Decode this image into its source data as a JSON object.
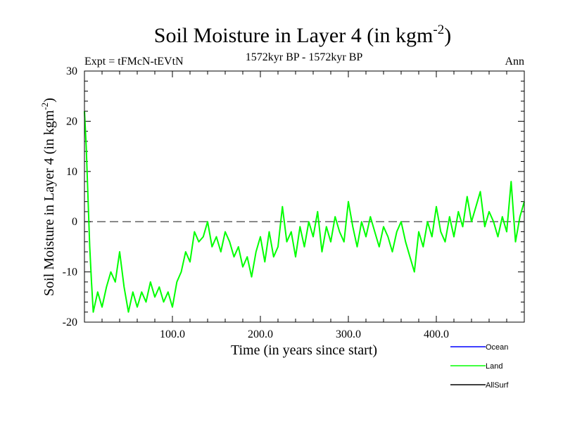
{
  "chart_data": {
    "type": "line",
    "title_main": "Soil Moisture in Layer 4 (in kgm",
    "title_exp": "-2",
    "title_close": ")",
    "subtitle_left": "Expt = tFMcN-tEVtN",
    "subtitle_center": "1572kyr BP - 1572kyr BP",
    "subtitle_right": "Ann",
    "xlabel": "Time (in years since start)",
    "ylabel_main": "Soil Moisture in Layer 4 (in kgm",
    "ylabel_exp": "-2",
    "ylabel_close": ")",
    "xlim": [
      0,
      500
    ],
    "ylim": [
      -20,
      30
    ],
    "x_ticks": [
      {
        "value": 100,
        "label": "100.0"
      },
      {
        "value": 200,
        "label": "200.0"
      },
      {
        "value": 300,
        "label": "300.0"
      },
      {
        "value": 400,
        "label": "400.0"
      }
    ],
    "y_ticks": [
      {
        "value": -20,
        "label": "-20"
      },
      {
        "value": -10,
        "label": "-10"
      },
      {
        "value": 0,
        "label": "0"
      },
      {
        "value": 10,
        "label": "10"
      },
      {
        "value": 20,
        "label": "20"
      },
      {
        "value": 30,
        "label": "30"
      }
    ],
    "reference_line": {
      "y": 0,
      "style": "dashed",
      "color": "#555555"
    },
    "legend": [
      {
        "name": "Ocean",
        "color": "#0000ff"
      },
      {
        "name": "Land",
        "color": "#00ff00"
      },
      {
        "name": "AllSurf",
        "color": "#000000"
      }
    ],
    "series": [
      {
        "name": "Land",
        "color": "#00ff00",
        "x": [
          0,
          2,
          4,
          6,
          8,
          10,
          15,
          20,
          25,
          30,
          35,
          40,
          45,
          50,
          55,
          60,
          65,
          70,
          75,
          80,
          85,
          90,
          95,
          100,
          105,
          110,
          115,
          120,
          125,
          130,
          135,
          140,
          145,
          150,
          155,
          160,
          165,
          170,
          175,
          180,
          185,
          190,
          195,
          200,
          205,
          210,
          215,
          220,
          225,
          230,
          235,
          240,
          245,
          250,
          255,
          260,
          265,
          270,
          275,
          280,
          285,
          290,
          295,
          300,
          305,
          310,
          315,
          320,
          325,
          330,
          335,
          340,
          345,
          350,
          355,
          360,
          365,
          370,
          375,
          380,
          385,
          390,
          395,
          400,
          405,
          410,
          415,
          420,
          425,
          430,
          435,
          440,
          445,
          450,
          455,
          460,
          465,
          470,
          475,
          480,
          485,
          490,
          495,
          500
        ],
        "values": [
          22,
          15,
          5,
          -5,
          -12,
          -18,
          -14,
          -17,
          -13,
          -10,
          -12,
          -6,
          -13,
          -18,
          -14,
          -17,
          -14,
          -16,
          -12,
          -15,
          -13,
          -16,
          -14,
          -17,
          -12,
          -10,
          -6,
          -8,
          -2,
          -4,
          -3,
          0,
          -5,
          -3,
          -6,
          -2,
          -4,
          -7,
          -5,
          -9,
          -7,
          -11,
          -6,
          -3,
          -8,
          -2,
          -7,
          -5,
          3,
          -4,
          -2,
          -7,
          -1,
          -5,
          0,
          -3,
          2,
          -6,
          -1,
          -4,
          1,
          -2,
          -4,
          4,
          -1,
          -5,
          0,
          -3,
          1,
          -2,
          -5,
          -1,
          -3,
          -6,
          -2,
          0,
          -4,
          -7,
          -10,
          -2,
          -5,
          0,
          -3,
          3,
          -2,
          -4,
          1,
          -3,
          2,
          -1,
          5,
          0,
          3,
          6,
          -1,
          2,
          0,
          -3,
          1,
          -2,
          8,
          -4,
          1,
          4
        ]
      }
    ]
  }
}
